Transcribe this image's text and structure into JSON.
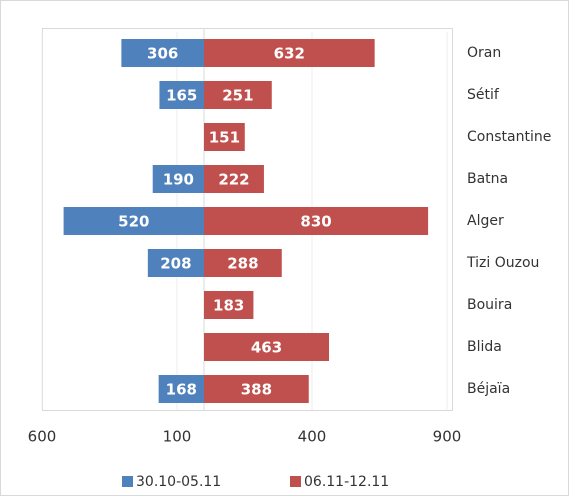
{
  "chart_data": {
    "type": "diverging-bar",
    "categories": [
      "Oran",
      "Sétif",
      "Constantine",
      "Batna",
      "Alger",
      "Tizi Ouzou",
      "Bouira",
      "Blida",
      "Béjaïa"
    ],
    "series": [
      {
        "name": "30.10-05.11",
        "color": "#4f81bd",
        "values": [
          -306,
          -165,
          null,
          -190,
          -520,
          -208,
          null,
          null,
          -168
        ],
        "value_labels": [
          "306",
          "165",
          null,
          "190",
          "520",
          "208",
          null,
          null,
          "168"
        ]
      },
      {
        "name": "06.11-12.11",
        "color": "#c0504d",
        "values": [
          632,
          251,
          151,
          222,
          830,
          288,
          183,
          463,
          388
        ]
      }
    ],
    "xlim": [
      -600,
      900
    ],
    "xticks": [
      {
        "value": -600,
        "label": "600"
      },
      {
        "value": -100,
        "label": "100"
      },
      400,
      900
    ],
    "grid": true,
    "legend": "bottom"
  }
}
